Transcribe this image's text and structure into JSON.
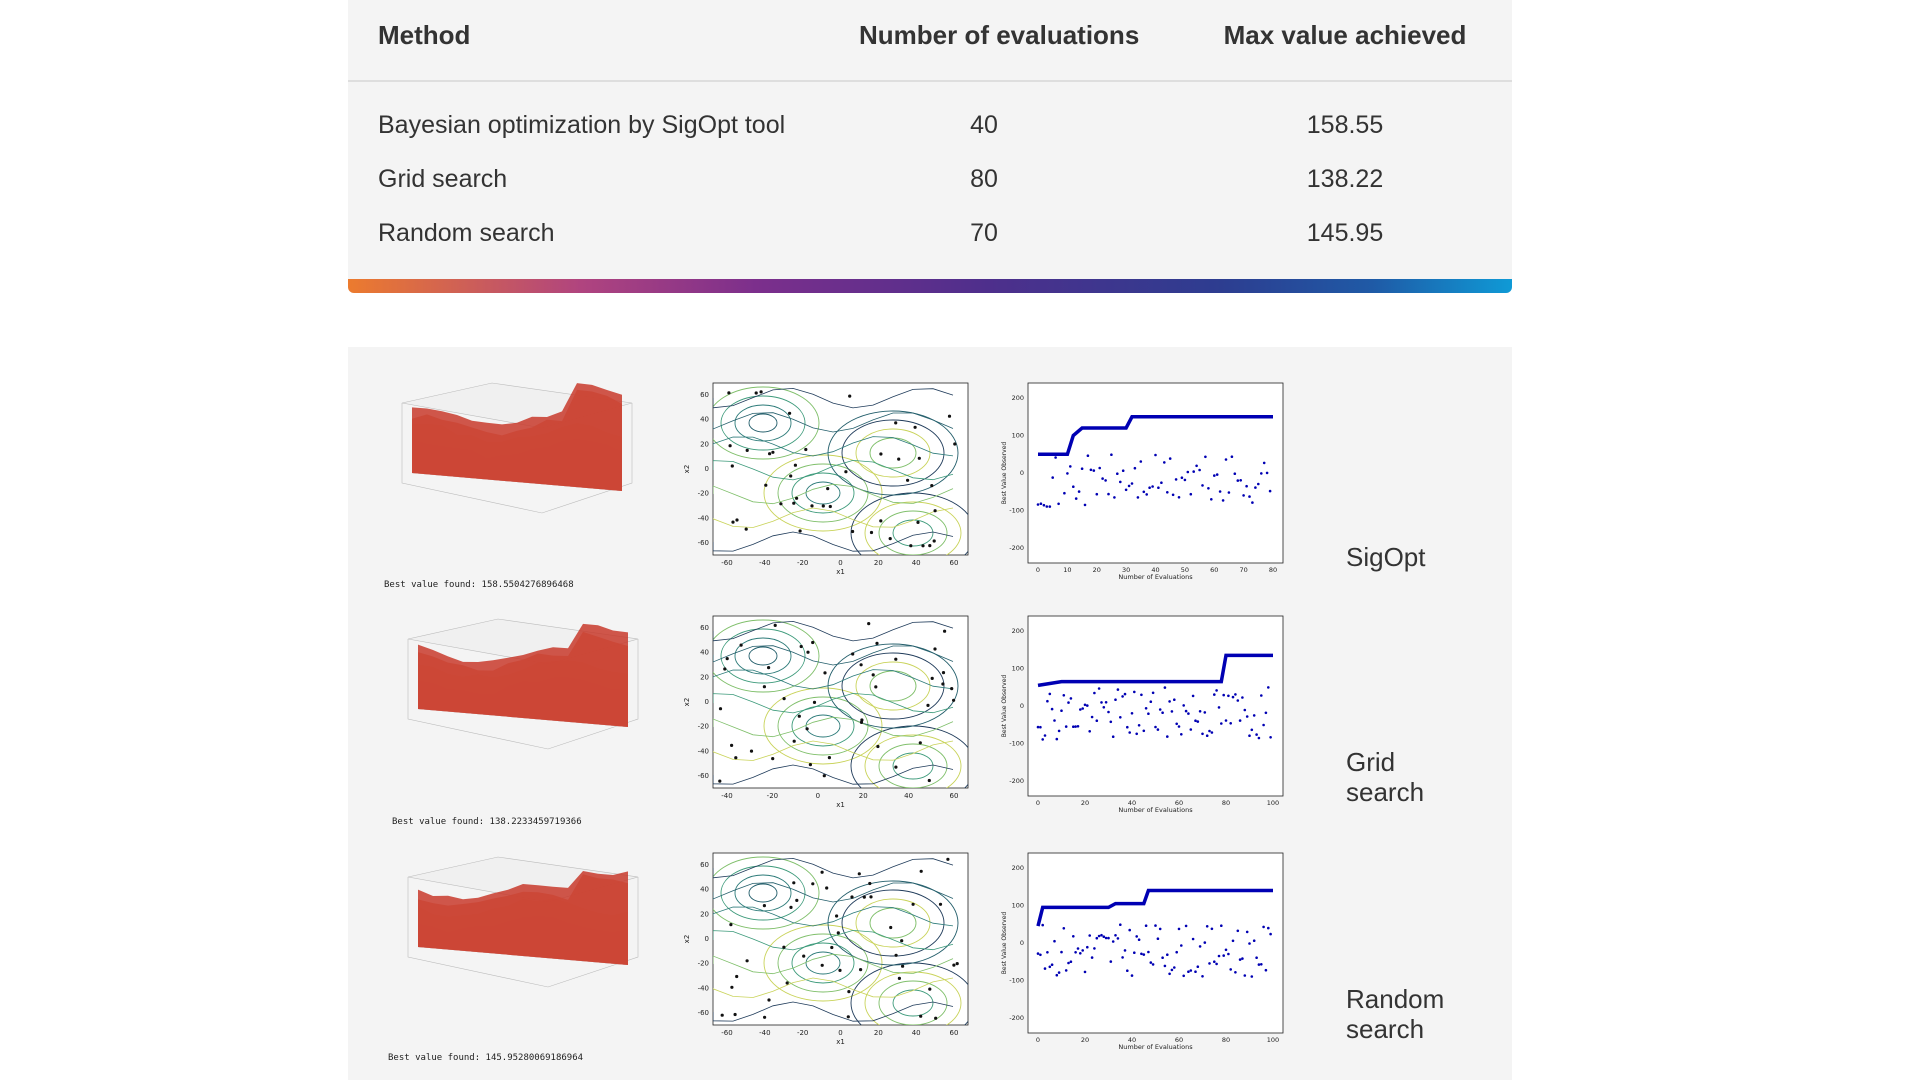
{
  "table": {
    "headers": [
      "Method",
      "Number of evaluations",
      "Max value achieved"
    ],
    "rows": [
      [
        "Bayesian optimization by SigOpt tool",
        "40",
        "158.55"
      ],
      [
        "Grid search",
        "80",
        "138.22"
      ],
      [
        "Random search",
        "70",
        "145.95"
      ]
    ]
  },
  "figures": {
    "rows": [
      {
        "label_lines": [
          "SigOpt"
        ],
        "best_value_text": "Best value found: 158.5504276896468",
        "contour": {
          "xticks": [
            "-60",
            "-40",
            "-20",
            "0",
            "20",
            "40",
            "60"
          ],
          "yticks": [
            "60",
            "40",
            "20",
            "0",
            "-20",
            "-40",
            "-60"
          ],
          "xlabel": "x1",
          "ylabel": "x2"
        },
        "history": {
          "xticks": [
            "0",
            "10",
            "20",
            "30",
            "40",
            "50",
            "60",
            "70",
            "80"
          ],
          "yticks": [
            "200",
            "100",
            "0",
            "-100",
            "-200"
          ],
          "xlabel": "Number of Evaluations",
          "ylabel": "Best Value Observed"
        }
      },
      {
        "label_lines": [
          "Grid",
          "search"
        ],
        "best_value_text": "Best value found: 138.2233459719366",
        "contour": {
          "xticks": [
            "-40",
            "-20",
            "0",
            "20",
            "40",
            "60"
          ],
          "yticks": [
            "60",
            "40",
            "20",
            "0",
            "-20",
            "-40",
            "-60"
          ],
          "xlabel": "x1",
          "ylabel": "x2"
        },
        "history": {
          "xticks": [
            "0",
            "20",
            "40",
            "60",
            "80",
            "100"
          ],
          "yticks": [
            "200",
            "100",
            "0",
            "-100",
            "-200"
          ],
          "xlabel": "Number of Evaluations",
          "ylabel": "Best Value Observed"
        }
      },
      {
        "label_lines": [
          "Random",
          "search"
        ],
        "best_value_text": "Best value found: 145.95280069186964",
        "contour": {
          "xticks": [
            "-60",
            "-40",
            "-20",
            "0",
            "20",
            "40",
            "60"
          ],
          "yticks": [
            "60",
            "40",
            "20",
            "0",
            "-20",
            "-40",
            "-60"
          ],
          "xlabel": "x1",
          "ylabel": "x2"
        },
        "history": {
          "xticks": [
            "0",
            "20",
            "40",
            "60",
            "80",
            "100"
          ],
          "yticks": [
            "200",
            "100",
            "0",
            "-100",
            "-200"
          ],
          "xlabel": "Number of Evaluations",
          "ylabel": "Best Value Observed"
        }
      }
    ]
  },
  "colors": {
    "accent_orange": "#ec7b2e",
    "accent_purple": "#7c2f8c",
    "accent_blue": "#0f9ad6",
    "history_line": "#0000b3",
    "surface_red": "#c8392b",
    "surface_blue": "#6b8fe6"
  }
}
